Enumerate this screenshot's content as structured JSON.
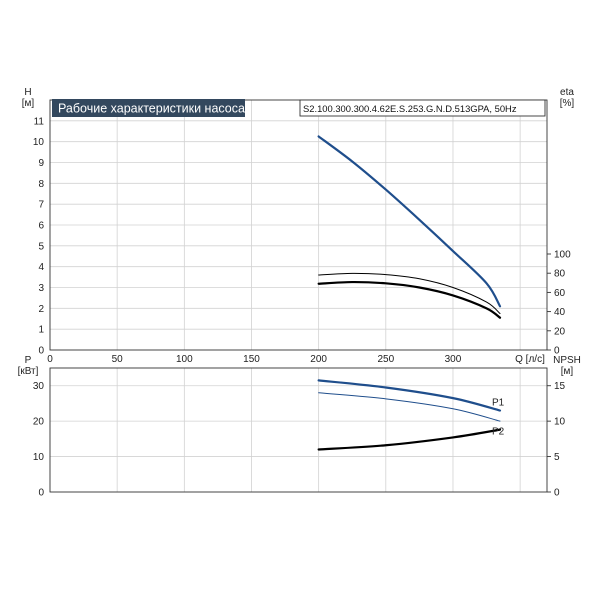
{
  "title": "Рабочие характеристики насоса",
  "model": "S2.100.300.300.4.62E.S.253.G.N.D.513GPA, 50Hz",
  "colors": {
    "blue": "#1f4e8c",
    "black": "#000000",
    "title_bg": "#33485e"
  },
  "chart_data": [
    {
      "type": "line",
      "name": "head-efficiency",
      "xlabel": "Q [л/с]",
      "ylabel": "H\n[м]",
      "y2label": "eta\n[%]",
      "xlim": [
        0,
        370
      ],
      "ylim": [
        0,
        12
      ],
      "y2lim": [
        0,
        100
      ],
      "xticks": [
        0,
        50,
        100,
        150,
        200,
        250,
        300
      ],
      "yticks": [
        0,
        1,
        2,
        3,
        4,
        5,
        6,
        7,
        8,
        9,
        10,
        11
      ],
      "y2ticks": [
        0,
        20,
        40,
        60,
        80,
        100
      ],
      "grid": true,
      "series": [
        {
          "axis": "H",
          "color": "#1f4e8c",
          "width": 2.2,
          "x": [
            200,
            225,
            250,
            275,
            300,
            325,
            335
          ],
          "y": [
            10.25,
            9.05,
            7.7,
            6.25,
            4.75,
            3.2,
            2.1
          ]
        },
        {
          "axis": "H",
          "color": "#000000",
          "width": 1,
          "x": [
            200,
            225,
            250,
            275,
            300,
            325,
            335
          ],
          "y": [
            3.6,
            3.68,
            3.62,
            3.42,
            3.0,
            2.3,
            1.75
          ]
        },
        {
          "axis": "H",
          "color": "#000000",
          "width": 2.2,
          "x": [
            200,
            225,
            250,
            275,
            300,
            325,
            335
          ],
          "y": [
            3.18,
            3.26,
            3.2,
            3.0,
            2.62,
            2.0,
            1.55
          ]
        }
      ]
    },
    {
      "type": "line",
      "name": "power-npsh",
      "xlabel": "",
      "ylabel": "P\n[кВт]",
      "y2label": "NPSH\n[м]",
      "xlim": [
        0,
        370
      ],
      "ylim": [
        0,
        35
      ],
      "y2lim": [
        0,
        17.5
      ],
      "yticks": [
        0,
        10,
        20,
        30
      ],
      "y2ticks": [
        0,
        5,
        10,
        15
      ],
      "grid": true,
      "series": [
        {
          "name": "P1",
          "axis": "P",
          "color": "#1f4e8c",
          "width": 2.2,
          "x": [
            200,
            250,
            300,
            335
          ],
          "y": [
            31.5,
            29.5,
            26.5,
            23.0
          ]
        },
        {
          "axis": "P",
          "color": "#1f4e8c",
          "width": 1,
          "x": [
            200,
            250,
            300,
            335
          ],
          "y": [
            28.0,
            26.3,
            23.5,
            20.0
          ]
        },
        {
          "name": "P2",
          "axis": "NPSH",
          "color": "#000000",
          "width": 2.2,
          "x": [
            200,
            250,
            300,
            335
          ],
          "y": [
            6.0,
            6.6,
            7.7,
            8.8
          ]
        }
      ]
    }
  ]
}
